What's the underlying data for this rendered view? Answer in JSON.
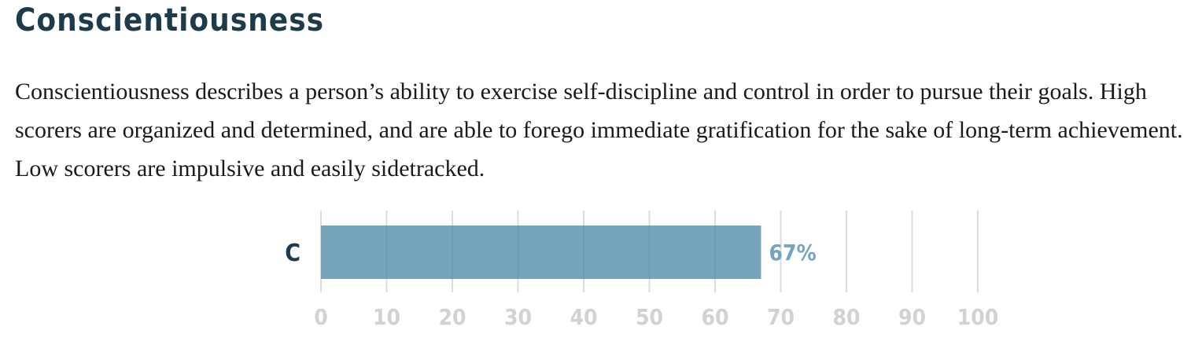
{
  "section": {
    "heading": "Conscientiousness",
    "description": "Conscientiousness describes a person’s ability to exercise self-discipline and control in order to pursue their goals. High scorers are organized and determined, and are able to forego immediate gratification for the sake of long-term achievement. Low scorers are impulsive and easily sidetracked."
  },
  "chart_data": {
    "type": "bar",
    "orientation": "horizontal",
    "categories": [
      "C"
    ],
    "values": [
      67
    ],
    "value_labels": [
      "67%"
    ],
    "xlim": [
      0,
      100
    ],
    "xticks": [
      0,
      10,
      20,
      30,
      40,
      50,
      60,
      70,
      80,
      90,
      100
    ],
    "grid": true,
    "colors": {
      "bar": "#74a5bc",
      "category_label": "#1d3b4a",
      "value_label": "#74a5bc",
      "tick_label": "#d2d2d2",
      "grid": "#dcdcdc"
    }
  }
}
